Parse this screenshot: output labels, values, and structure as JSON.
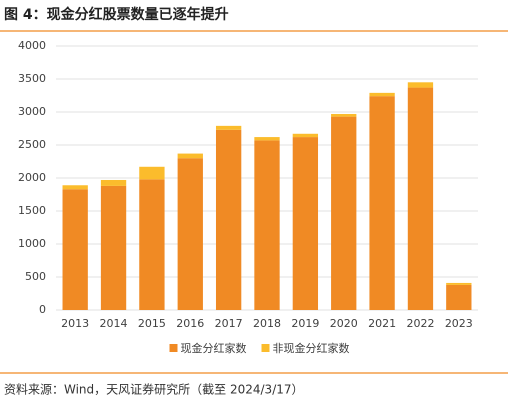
{
  "chart_data": {
    "type": "stacked_bar",
    "title": "图 4：现金分红股票数量已逐年提升",
    "categories": [
      "2013",
      "2014",
      "2015",
      "2016",
      "2017",
      "2018",
      "2019",
      "2020",
      "2021",
      "2022",
      "2023"
    ],
    "series": [
      {
        "name": "现金分红家数",
        "color": "#f08a24",
        "values": [
          1830,
          1880,
          1980,
          2300,
          2730,
          2570,
          2620,
          2930,
          3240,
          3370,
          380
        ]
      },
      {
        "name": "非现金分红家数",
        "color": "#fbbc2c",
        "values": [
          60,
          90,
          190,
          70,
          60,
          50,
          50,
          40,
          50,
          80,
          30
        ]
      }
    ],
    "ylim": [
      0,
      4000
    ],
    "yticks": [
      0,
      500,
      1000,
      1500,
      2000,
      2500,
      3000,
      3500,
      4000
    ],
    "grid": true,
    "legend": "bottom"
  },
  "source": "资料来源：Wind，天风证券研究所（截至 2024/3/17）"
}
